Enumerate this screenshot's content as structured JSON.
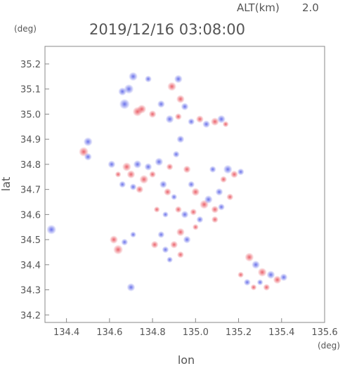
{
  "header": {
    "alt_label": "ALT(km)",
    "alt_value": "2.0",
    "datetime": "2019/12/16 03:08:00",
    "y_unit": "(deg)",
    "x_unit": "(deg)"
  },
  "chart_data": {
    "type": "scatter",
    "title": "2019/12/16 03:08:00",
    "xlabel": "lon",
    "ylabel": "lat",
    "xlim": [
      134.3,
      135.6
    ],
    "ylim": [
      34.17,
      35.27
    ],
    "x_ticks": [
      "134.4",
      "134.6",
      "134.8",
      "135.0",
      "135.2",
      "135.4",
      "135.6"
    ],
    "y_ticks": [
      "34.2",
      "34.3",
      "34.4",
      "34.5",
      "34.6",
      "34.7",
      "34.8",
      "34.9",
      "35.0",
      "35.1",
      "35.2"
    ],
    "grid": false,
    "colors": {
      "positive": "#e8505a",
      "negative": "#5a62e8"
    },
    "series": [
      {
        "values": [
          {
            "x": 134.71,
            "y": 35.15,
            "v": -0.7
          },
          {
            "x": 134.69,
            "y": 35.1,
            "v": -0.8
          },
          {
            "x": 134.67,
            "y": 35.04,
            "v": -0.9
          },
          {
            "x": 134.66,
            "y": 35.09,
            "v": -0.6
          },
          {
            "x": 134.73,
            "y": 35.01,
            "v": 0.8
          },
          {
            "x": 134.75,
            "y": 35.02,
            "v": 0.7
          },
          {
            "x": 134.78,
            "y": 35.14,
            "v": -0.4
          },
          {
            "x": 134.8,
            "y": 35.0,
            "v": 0.5
          },
          {
            "x": 134.84,
            "y": 35.04,
            "v": -0.5
          },
          {
            "x": 134.89,
            "y": 35.11,
            "v": 0.7
          },
          {
            "x": 134.92,
            "y": 35.14,
            "v": -0.6
          },
          {
            "x": 134.93,
            "y": 35.06,
            "v": 0.6
          },
          {
            "x": 134.95,
            "y": 35.03,
            "v": -0.5
          },
          {
            "x": 134.88,
            "y": 34.98,
            "v": -0.6
          },
          {
            "x": 134.92,
            "y": 34.99,
            "v": 0.4
          },
          {
            "x": 134.98,
            "y": 34.97,
            "v": -0.4
          },
          {
            "x": 135.02,
            "y": 34.98,
            "v": 0.5
          },
          {
            "x": 135.05,
            "y": 34.96,
            "v": -0.5
          },
          {
            "x": 135.09,
            "y": 34.97,
            "v": 0.6
          },
          {
            "x": 135.12,
            "y": 34.98,
            "v": -0.6
          },
          {
            "x": 135.14,
            "y": 34.96,
            "v": 0.3
          },
          {
            "x": 134.48,
            "y": 34.85,
            "v": 0.8
          },
          {
            "x": 134.5,
            "y": 34.89,
            "v": -0.7
          },
          {
            "x": 134.5,
            "y": 34.83,
            "v": -0.5
          },
          {
            "x": 134.61,
            "y": 34.8,
            "v": -0.5
          },
          {
            "x": 134.64,
            "y": 34.76,
            "v": 0.3
          },
          {
            "x": 134.68,
            "y": 34.79,
            "v": 0.7
          },
          {
            "x": 134.7,
            "y": 34.76,
            "v": 0.6
          },
          {
            "x": 134.73,
            "y": 34.8,
            "v": -0.6
          },
          {
            "x": 134.76,
            "y": 34.74,
            "v": 0.7
          },
          {
            "x": 134.78,
            "y": 34.79,
            "v": -0.5
          },
          {
            "x": 134.8,
            "y": 34.76,
            "v": 0.4
          },
          {
            "x": 134.83,
            "y": 34.81,
            "v": -0.6
          },
          {
            "x": 134.71,
            "y": 34.71,
            "v": -0.4
          },
          {
            "x": 134.74,
            "y": 34.7,
            "v": 0.5
          },
          {
            "x": 134.66,
            "y": 34.72,
            "v": -0.4
          },
          {
            "x": 134.88,
            "y": 34.79,
            "v": 0.4
          },
          {
            "x": 134.91,
            "y": 34.84,
            "v": -0.4
          },
          {
            "x": 134.93,
            "y": 34.9,
            "v": -0.5
          },
          {
            "x": 134.96,
            "y": 34.78,
            "v": 0.5
          },
          {
            "x": 134.98,
            "y": 34.72,
            "v": -0.4
          },
          {
            "x": 135.0,
            "y": 34.69,
            "v": 0.6
          },
          {
            "x": 134.87,
            "y": 34.69,
            "v": 0.5
          },
          {
            "x": 134.85,
            "y": 34.72,
            "v": -0.5
          },
          {
            "x": 134.9,
            "y": 34.67,
            "v": -0.3
          },
          {
            "x": 135.04,
            "y": 34.64,
            "v": 0.7
          },
          {
            "x": 135.06,
            "y": 34.66,
            "v": -0.6
          },
          {
            "x": 135.09,
            "y": 34.62,
            "v": 0.5
          },
          {
            "x": 135.11,
            "y": 34.69,
            "v": -0.5
          },
          {
            "x": 135.13,
            "y": 34.74,
            "v": 0.4
          },
          {
            "x": 135.15,
            "y": 34.78,
            "v": -0.7
          },
          {
            "x": 135.18,
            "y": 34.76,
            "v": 0.5
          },
          {
            "x": 135.21,
            "y": 34.77,
            "v": -0.4
          },
          {
            "x": 135.08,
            "y": 34.78,
            "v": -0.4
          },
          {
            "x": 134.92,
            "y": 34.62,
            "v": 0.4
          },
          {
            "x": 134.95,
            "y": 34.6,
            "v": -0.5
          },
          {
            "x": 134.99,
            "y": 34.61,
            "v": 0.4
          },
          {
            "x": 135.02,
            "y": 34.58,
            "v": -0.4
          },
          {
            "x": 134.82,
            "y": 34.62,
            "v": 0.3
          },
          {
            "x": 134.86,
            "y": 34.6,
            "v": -0.3
          },
          {
            "x": 134.93,
            "y": 34.53,
            "v": 0.6
          },
          {
            "x": 134.96,
            "y": 34.5,
            "v": -0.5
          },
          {
            "x": 134.9,
            "y": 34.48,
            "v": 0.5
          },
          {
            "x": 135.0,
            "y": 34.55,
            "v": 0.3
          },
          {
            "x": 134.84,
            "y": 34.52,
            "v": -0.4
          },
          {
            "x": 134.81,
            "y": 34.48,
            "v": 0.5
          },
          {
            "x": 134.86,
            "y": 34.46,
            "v": -0.4
          },
          {
            "x": 134.93,
            "y": 34.44,
            "v": 0.4
          },
          {
            "x": 134.88,
            "y": 34.42,
            "v": -0.3
          },
          {
            "x": 134.33,
            "y": 34.54,
            "v": -0.8
          },
          {
            "x": 134.62,
            "y": 34.5,
            "v": 0.6
          },
          {
            "x": 134.64,
            "y": 34.46,
            "v": 0.8
          },
          {
            "x": 134.67,
            "y": 34.49,
            "v": -0.4
          },
          {
            "x": 134.71,
            "y": 34.52,
            "v": -0.3
          },
          {
            "x": 134.7,
            "y": 34.31,
            "v": -0.6
          },
          {
            "x": 135.09,
            "y": 34.58,
            "v": 0.4
          },
          {
            "x": 135.12,
            "y": 34.63,
            "v": -0.4
          },
          {
            "x": 135.16,
            "y": 34.67,
            "v": 0.4
          },
          {
            "x": 135.25,
            "y": 34.43,
            "v": 0.7
          },
          {
            "x": 135.28,
            "y": 34.4,
            "v": -0.6
          },
          {
            "x": 135.31,
            "y": 34.37,
            "v": 0.7
          },
          {
            "x": 135.35,
            "y": 34.36,
            "v": -0.6
          },
          {
            "x": 135.38,
            "y": 34.34,
            "v": 0.6
          },
          {
            "x": 135.41,
            "y": 34.35,
            "v": -0.5
          },
          {
            "x": 135.24,
            "y": 34.33,
            "v": -0.4
          },
          {
            "x": 135.27,
            "y": 34.31,
            "v": 0.3
          },
          {
            "x": 135.3,
            "y": 34.33,
            "v": -0.3
          },
          {
            "x": 135.33,
            "y": 34.31,
            "v": 0.4
          },
          {
            "x": 135.21,
            "y": 34.36,
            "v": 0.3
          }
        ]
      }
    ]
  }
}
